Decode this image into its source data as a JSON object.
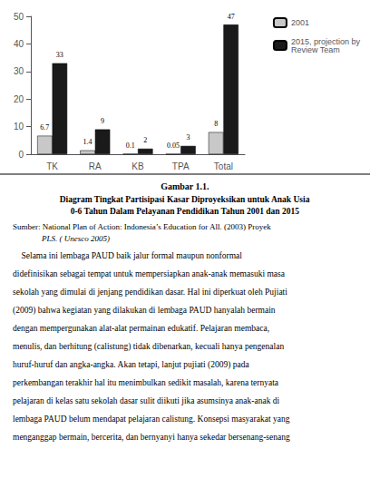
{
  "chart_data": {
    "type": "bar",
    "title": "Diagram Tingkat Partisipasi Kasar Diproyeksikan untuk Anak Usia\n0-6 Tahun Dalam Pelayanan Pendidikan Tahun 2001 dan 2015",
    "categories": [
      "TK",
      "RA",
      "KB",
      "TPA",
      "Total"
    ],
    "series": [
      {
        "name": "2001",
        "color": "#c8c8c8",
        "values": [
          6.7,
          1.4,
          0.1,
          0.05,
          8
        ]
      },
      {
        "name": "2015, projection by\nReview Team",
        "color": "#1a1a1a",
        "values": [
          33,
          9,
          2,
          3,
          47
        ]
      }
    ],
    "ylim": [
      0,
      50
    ],
    "yticks": [
      0,
      10,
      20,
      30,
      40,
      50
    ],
    "grid": false,
    "legend": "upper right",
    "data_labels": true,
    "annotations": [
      "Gambar 1.1.",
      "Sumber: National Plan of Action: Indonesia’s Education for All. (2003) Proyek",
      "PLS. ( Unesco 2005)",
      "    Selama ini lembaga PAUD baik jalur formal maupun nonformal",
      "didefinisikan sebagai tempat untuk mempersiapkan anak-anak memasuki masa",
      "sekolah yang dimulai di jenjang pendidikan dasar. Hal ini diperkuat oleh Pujiati",
      "(2009) bahwa kegiatan yang dilakukan di lembaga PAUD hanyalah bermain",
      "dengan mempergunakan alat-alat permainan edukatif. Pelajaran membaca,",
      "menulis, dan berhitung (calistung) tidak dibenarkan, kecuali hanya pengenalan",
      "huruf-huruf dan angka-angka. Akan tetapi, lanjut pujiati (2009) pada",
      "perkembangan terakhir hal itu menimbulkan sedikit masalah, karena ternyata",
      "pelajaran di kelas satu sekolah dasar sulit diikuti jika asumsinya anak-anak di",
      "lembaga PAUD belum mendapat pelajaran calistung. Konsepsi masyarakat yang",
      "menganggap bermain, bercerita, dan bernyanyi hanya sekedar bersenang-senang"
    ]
  }
}
